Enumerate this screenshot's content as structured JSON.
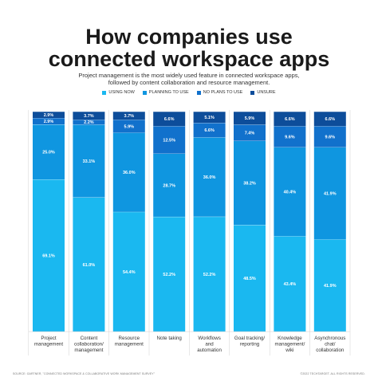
{
  "header": {
    "title_line1": "How companies use",
    "title_line2": "connected workspace apps",
    "subtitle_line1": "Project management is the most widely used feature in connected workspace apps,",
    "subtitle_line2": "followed by content collaboration and resource management."
  },
  "footer": {
    "source": "SOURCE: GARTNER, \"CONNECTED WORKSPACE & COLLABORATIVE WORK MANAGEMENT SURVEY\"",
    "copyright": "©2022 TECHTARGET. ALL RIGHTS RESERVED."
  },
  "colors": {
    "using_now": "#1ab8f0",
    "planning_to_use": "#0f96e0",
    "no_plans": "#1171cc",
    "unsure": "#0d4d9a"
  },
  "chart_data": {
    "type": "bar",
    "stacked": true,
    "ylim": [
      0,
      100
    ],
    "legend_position": "top-center",
    "categories": [
      [
        "Project",
        "management"
      ],
      [
        "Content",
        "collaboration/",
        "management"
      ],
      [
        "Resource",
        "management"
      ],
      [
        "Note taking"
      ],
      [
        "Workflows",
        "and",
        "automation"
      ],
      [
        "Goal tracking/",
        "reporting"
      ],
      [
        "Knowledge",
        "management/",
        "wiki"
      ],
      [
        "Asynchronous",
        "chat/",
        "collaboration"
      ]
    ],
    "series": [
      {
        "name": "USING NOW",
        "color_key": "using_now",
        "values": [
          69.1,
          61.0,
          54.4,
          52.2,
          52.2,
          48.5,
          43.4,
          41.9
        ]
      },
      {
        "name": "PLANNING TO USE",
        "color_key": "planning_to_use",
        "values": [
          25.0,
          33.1,
          36.0,
          28.7,
          36.0,
          38.2,
          40.4,
          41.9
        ]
      },
      {
        "name": "NO PLANS TO USE",
        "color_key": "no_plans",
        "values": [
          2.9,
          2.2,
          5.9,
          12.5,
          6.6,
          7.4,
          9.6,
          9.6
        ]
      },
      {
        "name": "UNSURE",
        "color_key": "unsure",
        "values": [
          2.9,
          3.7,
          3.7,
          6.6,
          5.1,
          5.9,
          6.6,
          6.6
        ]
      }
    ],
    "labels": [
      [
        "69.1%",
        "61.0%",
        "54.4%",
        "52.2%",
        "52.2%",
        "48.5%",
        "43.4%",
        "41.9%"
      ],
      [
        "25.0%",
        "33.1%",
        "36.0%",
        "28.7%",
        "36.0%",
        "38.2%",
        "40.4%",
        "41.9%"
      ],
      [
        "2.9%",
        "2.2%",
        "5.9%",
        "12.5%",
        "6.6%",
        "7.4%",
        "9.6%",
        "9.6%"
      ],
      [
        "2.9%",
        "3.7%",
        "3.7%",
        "6.6%",
        "5.1%",
        "5.9%",
        "6.6%",
        "6.6%"
      ]
    ]
  }
}
